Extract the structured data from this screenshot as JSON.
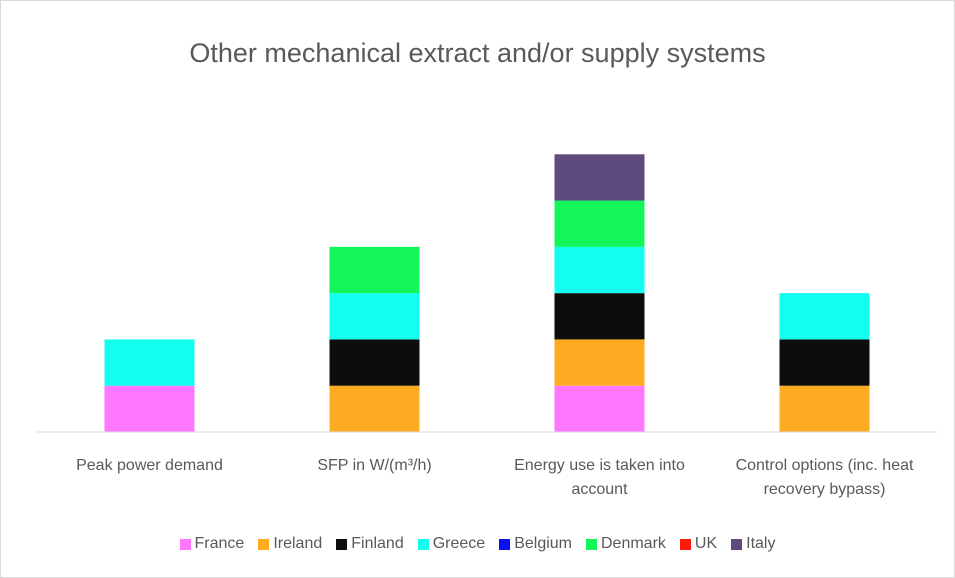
{
  "chart_data": {
    "type": "stacked_bar",
    "title": "Other mechanical extract and/or supply systems",
    "categories": [
      "Peak power demand",
      "SFP in W/(m³/h)",
      "Energy use is taken into account",
      "Control options (inc. heat recovery bypass)"
    ],
    "ylim": [
      0,
      7
    ],
    "legend": "bottom",
    "series": [
      {
        "name": "France",
        "color": "#ff77ff",
        "values": [
          1,
          0,
          1,
          0
        ]
      },
      {
        "name": "Ireland",
        "color": "#ffab21",
        "values": [
          0,
          1,
          1,
          1
        ]
      },
      {
        "name": "Finland",
        "color": "#0d0d0d",
        "values": [
          0,
          1,
          1,
          1
        ]
      },
      {
        "name": "Greece",
        "color": "#12ffef",
        "values": [
          1,
          1,
          1,
          1
        ]
      },
      {
        "name": "Belgium",
        "color": "#0a10f0",
        "values": [
          0,
          0,
          0,
          0
        ]
      },
      {
        "name": "Denmark",
        "color": "#12f65a",
        "values": [
          0,
          1,
          1,
          0
        ]
      },
      {
        "name": "UK",
        "color": "#ff1a10",
        "values": [
          0,
          0,
          0,
          0
        ]
      },
      {
        "name": "Italy",
        "color": "#5f4a7e",
        "values": [
          0,
          0,
          1,
          0
        ]
      }
    ]
  }
}
